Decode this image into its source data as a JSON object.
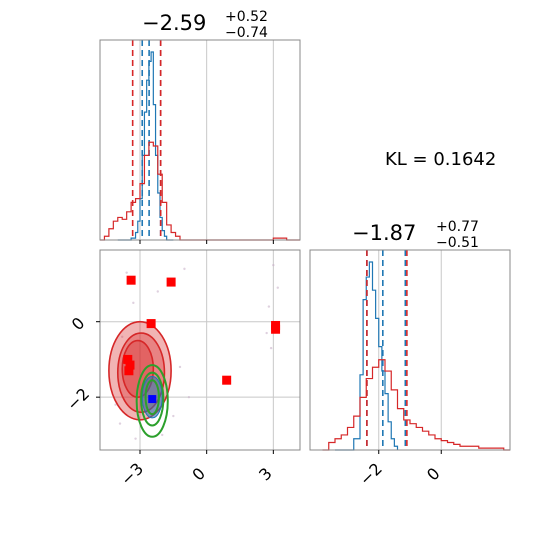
{
  "chart_data": [
    {
      "type": "histogram",
      "panel": "marginal-param-1",
      "title": {
        "median": "−2.59",
        "plus": "+0.52",
        "minus": "−0.74"
      },
      "xlim": [
        -4.8,
        4.2
      ],
      "grid": true,
      "x_ticks": [
        -3,
        0,
        3
      ],
      "series": [
        {
          "color": "#1f77b4",
          "bins": [
            [
              -4.0,
              0
            ],
            [
              -3.6,
              0
            ],
            [
              -3.4,
              0.01
            ],
            [
              -3.2,
              0.04
            ],
            [
              -3.1,
              0.1
            ],
            [
              -3.0,
              0.22
            ],
            [
              -2.9,
              0.45
            ],
            [
              -2.8,
              0.68
            ],
            [
              -2.7,
              0.85
            ],
            [
              -2.6,
              0.95
            ],
            [
              -2.5,
              1.0
            ],
            [
              -2.4,
              0.72
            ],
            [
              -2.3,
              0.45
            ],
            [
              -2.2,
              0.25
            ],
            [
              -2.1,
              0.12
            ],
            [
              -2.0,
              0.05
            ],
            [
              -1.9,
              0.02
            ],
            [
              -1.8,
              0
            ],
            [
              -1.5,
              0
            ]
          ],
          "quantile_lines": [
            -2.9,
            -2.59,
            -2.07
          ]
        },
        {
          "color": "#d62728",
          "bins": [
            [
              -4.8,
              0
            ],
            [
              -4.6,
              0.02
            ],
            [
              -4.4,
              0.06
            ],
            [
              -4.2,
              0.1
            ],
            [
              -4.0,
              0.12
            ],
            [
              -3.8,
              0.11
            ],
            [
              -3.6,
              0.15
            ],
            [
              -3.4,
              0.2
            ],
            [
              -3.2,
              0.22
            ],
            [
              -3.0,
              0.3
            ],
            [
              -2.8,
              0.45
            ],
            [
              -2.6,
              0.52
            ],
            [
              -2.4,
              0.5
            ],
            [
              -2.2,
              0.35
            ],
            [
              -2.0,
              0.2
            ],
            [
              -1.8,
              0.08
            ],
            [
              -1.6,
              0.04
            ],
            [
              -1.4,
              0.02
            ],
            [
              -1.2,
              0
            ],
            [
              2.9,
              0
            ],
            [
              3.0,
              0.01
            ],
            [
              3.3,
              0.01
            ],
            [
              3.6,
              0
            ],
            [
              4.2,
              0
            ]
          ],
          "quantile_lines": [
            -3.33,
            -2.07
          ]
        }
      ]
    },
    {
      "type": "histogram",
      "panel": "marginal-param-2",
      "title": {
        "median": "−1.87",
        "plus": "+0.77",
        "minus": "−0.51"
      },
      "xlim": [
        -4.2,
        2.2
      ],
      "grid": true,
      "x_ticks": [
        -2,
        0
      ],
      "series": [
        {
          "color": "#1f77b4",
          "bins": [
            [
              -3.4,
              0
            ],
            [
              -3.0,
              0
            ],
            [
              -2.8,
              0.06
            ],
            [
              -2.6,
              0.4
            ],
            [
              -2.5,
              0.8
            ],
            [
              -2.4,
              0.92
            ],
            [
              -2.3,
              1.0
            ],
            [
              -2.2,
              0.85
            ],
            [
              -2.1,
              0.7
            ],
            [
              -2.0,
              0.55
            ],
            [
              -1.9,
              0.42
            ],
            [
              -1.8,
              0.3
            ],
            [
              -1.7,
              0.15
            ],
            [
              -1.6,
              0.06
            ],
            [
              -1.5,
              0.02
            ],
            [
              -1.4,
              0
            ]
          ],
          "quantile_lines": [
            -2.38,
            -1.87,
            -1.15
          ]
        },
        {
          "color": "#d62728",
          "bins": [
            [
              -3.8,
              0
            ],
            [
              -3.6,
              0.04
            ],
            [
              -3.4,
              0.06
            ],
            [
              -3.2,
              0.08
            ],
            [
              -3.0,
              0.12
            ],
            [
              -2.8,
              0.18
            ],
            [
              -2.6,
              0.28
            ],
            [
              -2.4,
              0.38
            ],
            [
              -2.2,
              0.44
            ],
            [
              -2.0,
              0.48
            ],
            [
              -1.8,
              0.42
            ],
            [
              -1.6,
              0.32
            ],
            [
              -1.4,
              0.22
            ],
            [
              -1.2,
              0.16
            ],
            [
              -1.0,
              0.14
            ],
            [
              -0.8,
              0.12
            ],
            [
              -0.6,
              0.1
            ],
            [
              -0.4,
              0.08
            ],
            [
              -0.2,
              0.06
            ],
            [
              0.0,
              0.05
            ],
            [
              0.2,
              0.04
            ],
            [
              0.4,
              0.03
            ],
            [
              0.6,
              0.02
            ],
            [
              0.8,
              0.02
            ],
            [
              1.0,
              0.02
            ],
            [
              1.2,
              0.01
            ],
            [
              1.6,
              0.01
            ],
            [
              2.0,
              0
            ],
            [
              2.2,
              0
            ]
          ],
          "quantile_lines": [
            -2.38,
            -1.1
          ]
        }
      ]
    },
    {
      "type": "scatter",
      "panel": "joint-2d",
      "xlim": [
        -4.8,
        4.2
      ],
      "ylim": [
        -3.4,
        1.9
      ],
      "grid": true,
      "x_ticks": [
        -3,
        0,
        3
      ],
      "y_ticks": [
        -2,
        0
      ],
      "contours": {
        "red": [
          {
            "cx": -3.0,
            "cy": -1.3,
            "rx": 1.4,
            "ry": 1.3
          },
          {
            "cx": -2.95,
            "cy": -1.35,
            "rx": 1.05,
            "ry": 1.05
          },
          {
            "cx": -3.1,
            "cy": -1.25,
            "rx": 0.7,
            "ry": 0.75
          }
        ],
        "blue": [
          {
            "cx": -2.45,
            "cy": -2.0,
            "rx": 0.45,
            "ry": 0.55
          }
        ],
        "green": [
          {
            "cx": -2.45,
            "cy": -2.1,
            "rx": 0.7,
            "ry": 0.95
          },
          {
            "cx": -2.45,
            "cy": -2.05,
            "rx": 0.5,
            "ry": 0.7
          },
          {
            "cx": -2.45,
            "cy": -2.0,
            "rx": 0.3,
            "ry": 0.45
          }
        ]
      },
      "red_square_points": [
        [
          -3.4,
          1.1
        ],
        [
          -1.6,
          1.05
        ],
        [
          -2.5,
          -0.05
        ],
        [
          3.1,
          -0.1
        ],
        [
          3.1,
          -0.2
        ],
        [
          0.9,
          -1.55
        ],
        [
          -3.55,
          -1.0
        ],
        [
          -3.5,
          -1.3
        ],
        [
          -3.45,
          -1.15
        ]
      ],
      "blue_square_points": [
        [
          -2.45,
          -2.05
        ]
      ]
    }
  ],
  "kl": {
    "label": "KL = 0.1642"
  }
}
